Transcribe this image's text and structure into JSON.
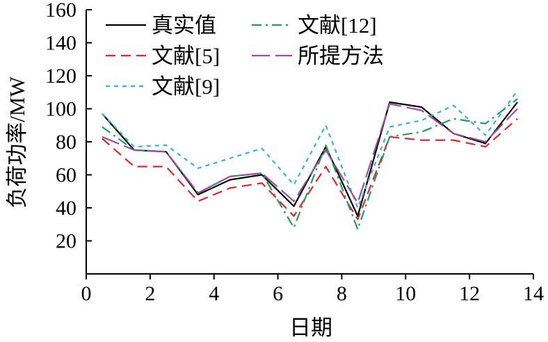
{
  "chart_data": {
    "type": "line",
    "xlabel": "日期",
    "ylabel": "负荷功率/MW",
    "xlim": [
      0,
      14
    ],
    "ylim": [
      0,
      160
    ],
    "xticks": [
      "0",
      "2",
      "4",
      "6",
      "8",
      "10",
      "12",
      "14"
    ],
    "yticks": [
      "20",
      "40",
      "60",
      "80",
      "100",
      "120",
      "140",
      "160"
    ],
    "grid": false,
    "legend_position": "top-left",
    "x": [
      0.5,
      1.5,
      2.5,
      3.5,
      4.5,
      5.5,
      6.5,
      7.5,
      8.5,
      9.5,
      10.5,
      11.5,
      12.5,
      13.5
    ],
    "series": [
      {
        "name": "真实值",
        "color": "#000000",
        "dash": "solid",
        "values": [
          97,
          75,
          74,
          48,
          57,
          60,
          41,
          77,
          35,
          104,
          101,
          85,
          79,
          104
        ]
      },
      {
        "name": "文献[5]",
        "color": "#e3262b",
        "dash": "dashed",
        "values": [
          82,
          65,
          65,
          44,
          52,
          55,
          35,
          65,
          33,
          83,
          81,
          81,
          77,
          94
        ]
      },
      {
        "name": "文献[9]",
        "color": "#31b6d9",
        "dash": "dotted",
        "values": [
          97,
          77,
          78,
          64,
          70,
          76,
          54,
          90,
          40,
          89,
          93,
          102,
          84,
          111
        ]
      },
      {
        "name": "文献[12]",
        "color": "#1e9d5c",
        "dash": "dashdot",
        "values": [
          89,
          75,
          74,
          49,
          59,
          61,
          28,
          78,
          27,
          83,
          86,
          94,
          91,
          106
        ]
      },
      {
        "name": "所提方法",
        "color": "#9b4f9f",
        "dash": "longdash",
        "values": [
          83,
          75,
          74,
          49,
          59,
          61,
          44,
          75,
          43,
          103,
          99,
          85,
          80,
          100
        ]
      }
    ]
  }
}
